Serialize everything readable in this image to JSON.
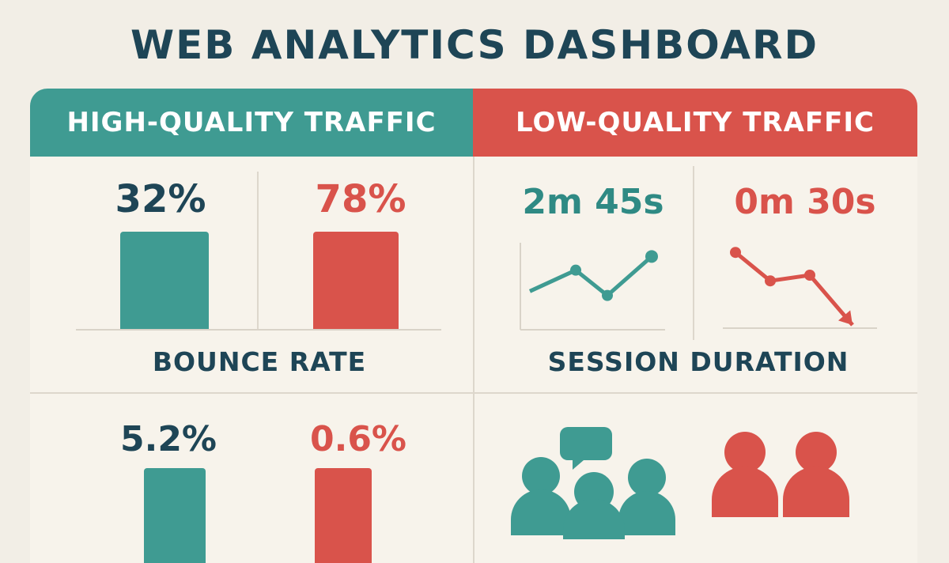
{
  "title": "WEB ANALYTICS DASHBOARD",
  "headers": {
    "high": "HIGH-QUALITY TRAFFIC",
    "low": "LOW-QUALITY TRAFFIC"
  },
  "panels": {
    "bounce": {
      "label": "BOUNCE RATE",
      "high_text": "32%",
      "low_text": "78%"
    },
    "session": {
      "label": "SESSION DURATION",
      "high_text": "2m 45s",
      "low_text": "0m 30s"
    },
    "conversion": {
      "high_text": "5.2%",
      "low_text": "0.6%"
    }
  },
  "colors": {
    "teal": "#3f9b92",
    "red": "#d9534b",
    "navy": "#1e4556",
    "background": "#f2eee6"
  },
  "icons": {
    "engaged_users": "people-chat-icon",
    "few_users": "people-icon"
  },
  "chart_data": [
    {
      "type": "bar",
      "title": "BOUNCE RATE",
      "categories": [
        "HIGH-QUALITY TRAFFIC",
        "LOW-QUALITY TRAFFIC"
      ],
      "values": [
        32,
        78
      ],
      "unit": "%",
      "ylim": [
        0,
        100
      ]
    },
    {
      "type": "line",
      "title": "SESSION DURATION",
      "series": [
        {
          "name": "HIGH-QUALITY TRAFFIC",
          "values": [
            2,
            4,
            1.6,
            5.3
          ]
        },
        {
          "name": "LOW-QUALITY TRAFFIC",
          "values": [
            5.6,
            3.6,
            4.0,
            0.5
          ]
        }
      ],
      "ylim": [
        0,
        6
      ]
    },
    {
      "type": "bar",
      "categories": [
        "HIGH-QUALITY TRAFFIC",
        "LOW-QUALITY TRAFFIC"
      ],
      "values": [
        5.2,
        0.6
      ],
      "unit": "%"
    }
  ]
}
